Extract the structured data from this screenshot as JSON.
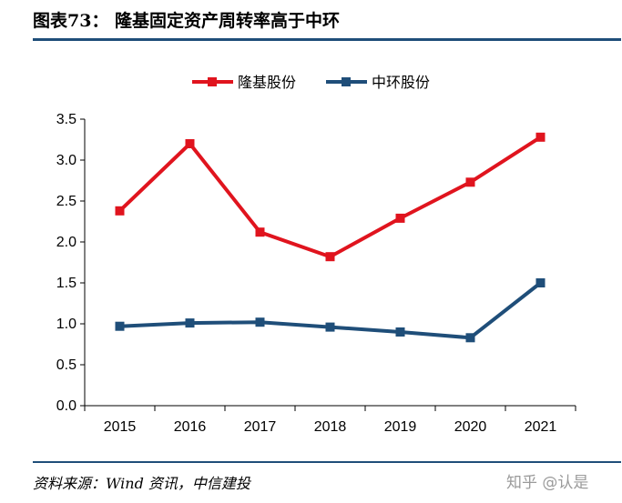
{
  "header": {
    "title": "图表73：  隆基固定资产周转率高于中环"
  },
  "source": "资料来源：Wind 资讯，中信建投",
  "watermark": "知乎 @认是",
  "colors": {
    "series_1": "#e0141e",
    "series_2": "#1f4e79",
    "rule": "#1f4e79"
  },
  "chart_data": {
    "type": "line",
    "title": "",
    "xlabel": "",
    "ylabel": "",
    "categories": [
      "2015",
      "2016",
      "2017",
      "2018",
      "2019",
      "2020",
      "2021"
    ],
    "ylim": [
      0,
      3.5
    ],
    "yticks": [
      "0.0",
      "0.5",
      "1.0",
      "1.5",
      "2.0",
      "2.5",
      "3.0",
      "3.5"
    ],
    "grid": false,
    "legend": "top-center",
    "series": [
      {
        "name": "隆基股份",
        "color": "#e0141e",
        "values": [
          2.38,
          3.2,
          2.12,
          1.82,
          2.29,
          2.73,
          3.28
        ]
      },
      {
        "name": "中环股份",
        "color": "#1f4e79",
        "values": [
          0.97,
          1.01,
          1.02,
          0.96,
          0.9,
          0.83,
          1.5
        ]
      }
    ]
  }
}
